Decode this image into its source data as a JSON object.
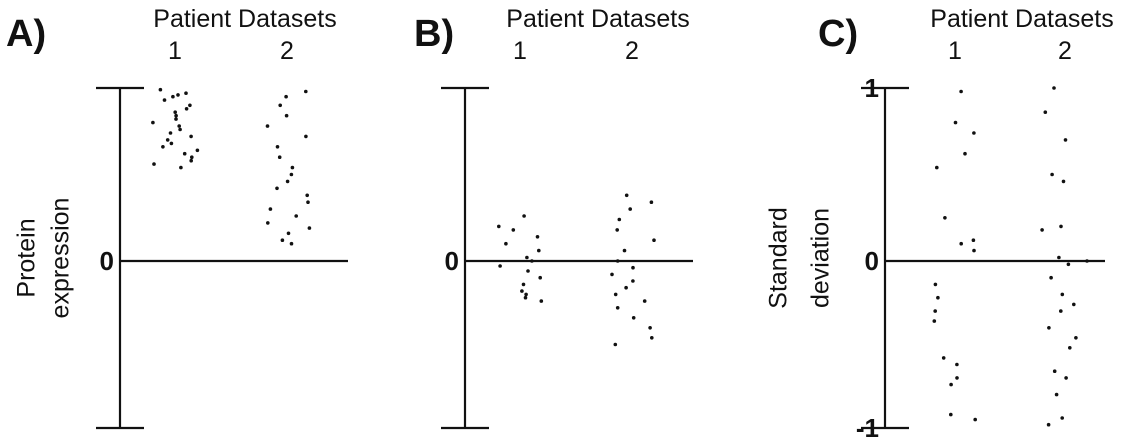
{
  "chart_data": [
    {
      "type": "scatter",
      "panel_label": "A)",
      "title": "Patient Datasets",
      "categories": [
        "1",
        "2"
      ],
      "ylabel_lines": [
        "Protein",
        "expression"
      ],
      "y_ticks": [
        {
          "value": 0,
          "label": "0"
        }
      ],
      "ylim": [
        -1,
        1
      ],
      "zero_line": true,
      "series": [
        {
          "category": "1",
          "values": [
            0.99,
            0.97,
            0.96,
            0.95,
            0.93,
            0.9,
            0.88,
            0.86,
            0.84,
            0.82,
            0.8,
            0.78,
            0.76,
            0.74,
            0.72,
            0.7,
            0.68,
            0.66,
            0.64,
            0.62,
            0.6,
            0.58,
            0.56,
            0.54
          ]
        },
        {
          "category": "2",
          "values": [
            0.98,
            0.95,
            0.9,
            0.84,
            0.78,
            0.72,
            0.66,
            0.6,
            0.54,
            0.5,
            0.46,
            0.42,
            0.38,
            0.34,
            0.3,
            0.26,
            0.22,
            0.19,
            0.16,
            0.12,
            0.1
          ]
        }
      ]
    },
    {
      "type": "scatter",
      "panel_label": "B)",
      "title": "Patient Datasets",
      "categories": [
        "1",
        "2"
      ],
      "ylabel_lines": [],
      "y_ticks": [
        {
          "value": 0,
          "label": "0"
        }
      ],
      "ylim": [
        -1,
        1
      ],
      "zero_line": true,
      "series": [
        {
          "category": "1",
          "values": [
            0.26,
            0.2,
            0.18,
            0.14,
            0.1,
            0.06,
            0.02,
            0.0,
            -0.03,
            -0.06,
            -0.1,
            -0.14,
            -0.18,
            -0.2,
            -0.22,
            -0.24
          ]
        },
        {
          "category": "2",
          "values": [
            0.38,
            0.34,
            0.3,
            0.24,
            0.18,
            0.12,
            0.06,
            0.0,
            -0.04,
            -0.08,
            -0.12,
            -0.16,
            -0.2,
            -0.24,
            -0.28,
            -0.34,
            -0.4,
            -0.46,
            -0.5
          ]
        }
      ]
    },
    {
      "type": "scatter",
      "panel_label": "C)",
      "title": "Patient Datasets",
      "categories": [
        "1",
        "2"
      ],
      "ylabel_lines": [
        "Standard",
        "deviation"
      ],
      "y_ticks": [
        {
          "value": 1,
          "label": "1"
        },
        {
          "value": 0,
          "label": "0"
        },
        {
          "value": -1,
          "label": "-1"
        }
      ],
      "ylim": [
        -1,
        1
      ],
      "zero_line": true,
      "series": [
        {
          "category": "1",
          "values": [
            0.98,
            0.8,
            0.74,
            0.62,
            0.54,
            0.25,
            0.12,
            0.1,
            0.06,
            -0.14,
            -0.22,
            -0.3,
            -0.36,
            -0.58,
            -0.62,
            -0.7,
            -0.74,
            -0.92,
            -0.95
          ]
        },
        {
          "category": "2",
          "values": [
            1.0,
            0.86,
            0.7,
            0.5,
            0.46,
            0.2,
            0.18,
            0.02,
            0.0,
            -0.02,
            -0.1,
            -0.2,
            -0.26,
            -0.3,
            -0.4,
            -0.46,
            -0.52,
            -0.66,
            -0.7,
            -0.8,
            -0.94,
            -0.98
          ]
        }
      ]
    }
  ]
}
